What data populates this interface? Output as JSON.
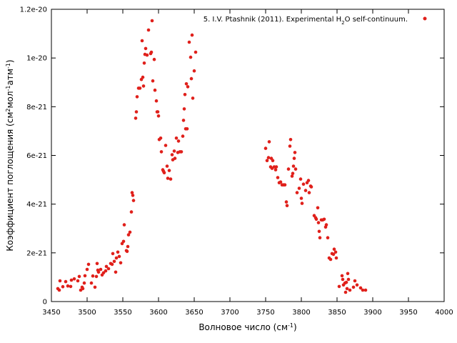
{
  "chart_data": {
    "type": "scatter",
    "xlabel": {
      "pre": "Волновое число (см",
      "sup": "-1",
      "post": ")"
    },
    "ylabel": {
      "parts": [
        {
          "t": "Коэффициент поглощения (см",
          "sup": false
        },
        {
          "t": "2",
          "sup": true
        },
        {
          "t": "мол",
          "sup": false
        },
        {
          "t": "-1",
          "sup": true
        },
        {
          "t": "атм",
          "sup": false
        },
        {
          "t": "-1",
          "sup": true
        },
        {
          "t": ")",
          "sup": false
        }
      ]
    },
    "xlim": [
      3450,
      4000
    ],
    "ylim": [
      0,
      1.2e-20
    ],
    "x_ticks": [
      3450,
      3500,
      3550,
      3600,
      3650,
      3700,
      3750,
      3800,
      3850,
      3900,
      3950,
      4000
    ],
    "y_ticks": [
      0,
      2e-21,
      4e-21,
      6e-21,
      8e-21,
      1e-20,
      1.2e-20
    ],
    "y_tick_labels": [
      "0",
      "2e-21",
      "4e-21",
      "6e-21",
      "8e-21",
      "1e-20",
      "1.2e-20"
    ],
    "grid": false,
    "legend_position": "top-right",
    "series": [
      {
        "name": "5. I.V. Ptashnik (2011). Experimental H2O self-continuum.",
        "name_parts": [
          {
            "t": "5. I.V. Ptashnik (2011). Experimental H",
            "sub": false
          },
          {
            "t": "2",
            "sub": true
          },
          {
            "t": "O self-continuum.",
            "sub": false
          }
        ],
        "color": "#e0201b",
        "points": [
          [
            3459,
            5.3e-22
          ],
          [
            3461,
            4.7e-22
          ],
          [
            3462,
            8.5e-22
          ],
          [
            3466,
            6.1e-22
          ],
          [
            3470,
            8.2e-22
          ],
          [
            3473,
            6.4e-22
          ],
          [
            3477,
            6.2e-22
          ],
          [
            3478,
            8.8e-22
          ],
          [
            3482,
            9.3e-22
          ],
          [
            3487,
            8.5e-22
          ],
          [
            3489,
            1.03e-21
          ],
          [
            3491,
            4.7e-22
          ],
          [
            3493,
            5.9e-22
          ],
          [
            3494,
            5.3e-22
          ],
          [
            3496,
            7.6e-22
          ],
          [
            3497,
            1.06e-21
          ],
          [
            3500,
            1.32e-21
          ],
          [
            3502,
            1.53e-21
          ],
          [
            3506,
            7.6e-22
          ],
          [
            3508,
            1.05e-21
          ],
          [
            3511,
            5.9e-22
          ],
          [
            3513,
            1.03e-21
          ],
          [
            3514,
            1.56e-21
          ],
          [
            3515,
            1.29e-21
          ],
          [
            3516,
            1.21e-21
          ],
          [
            3519,
            1.32e-21
          ],
          [
            3521,
            1.09e-21
          ],
          [
            3523,
            1.18e-21
          ],
          [
            3526,
            1.26e-21
          ],
          [
            3527,
            1.44e-21
          ],
          [
            3530,
            1.35e-21
          ],
          [
            3533,
            1.56e-21
          ],
          [
            3535,
            1.53e-21
          ],
          [
            3536,
            1.97e-21
          ],
          [
            3538,
            1.65e-21
          ],
          [
            3540,
            1.21e-21
          ],
          [
            3541,
            1.79e-21
          ],
          [
            3543,
            2.03e-21
          ],
          [
            3545,
            1.85e-21
          ],
          [
            3547,
            1.59e-21
          ],
          [
            3549,
            2.38e-21
          ],
          [
            3551,
            2.47e-21
          ],
          [
            3552,
            3.15e-21
          ],
          [
            3555,
            2.09e-21
          ],
          [
            3556,
            2.06e-21
          ],
          [
            3557,
            2.26e-21
          ],
          [
            3558,
            2.74e-21
          ],
          [
            3560,
            2.85e-21
          ],
          [
            3562,
            3.68e-21
          ],
          [
            3563,
            4.47e-21
          ],
          [
            3564,
            4.36e-21
          ],
          [
            3565,
            4.15e-21
          ],
          [
            3568,
            7.53e-21
          ],
          [
            3569,
            7.79e-21
          ],
          [
            3570,
            8.41e-21
          ],
          [
            3572,
            8.76e-21
          ],
          [
            3574,
            8.76e-21
          ],
          [
            3576,
            9.12e-21
          ],
          [
            3577,
            1.071e-20
          ],
          [
            3578,
            9.21e-21
          ],
          [
            3579,
            8.85e-21
          ],
          [
            3580,
            9.79e-21
          ],
          [
            3581,
            1.015e-20
          ],
          [
            3582,
            1.039e-20
          ],
          [
            3584,
            1.012e-20
          ],
          [
            3586,
            1.115e-20
          ],
          [
            3589,
            1.018e-20
          ],
          [
            3590,
            1.024e-20
          ],
          [
            3591,
            1.153e-20
          ],
          [
            3592,
            9.06e-21
          ],
          [
            3594,
            9.94e-21
          ],
          [
            3595,
            8.68e-21
          ],
          [
            3597,
            8.24e-21
          ],
          [
            3598,
            7.79e-21
          ],
          [
            3599,
            7.79e-21
          ],
          [
            3600,
            7.62e-21
          ],
          [
            3601,
            6.65e-21
          ],
          [
            3603,
            6.71e-21
          ],
          [
            3604,
            6.15e-21
          ],
          [
            3606,
            5.41e-21
          ],
          [
            3607,
            5.35e-21
          ],
          [
            3608,
            5.29e-21
          ],
          [
            3610,
            6.41e-21
          ],
          [
            3612,
            5.56e-21
          ],
          [
            3613,
            5.06e-21
          ],
          [
            3615,
            5.38e-21
          ],
          [
            3617,
            5.03e-21
          ],
          [
            3619,
            6.03e-21
          ],
          [
            3620,
            5.82e-21
          ],
          [
            3622,
            6.18e-21
          ],
          [
            3623,
            5.88e-21
          ],
          [
            3625,
            6.71e-21
          ],
          [
            3627,
            6.12e-21
          ],
          [
            3628,
            6.59e-21
          ],
          [
            3630,
            6.15e-21
          ],
          [
            3632,
            6.15e-21
          ],
          [
            3634,
            6.79e-21
          ],
          [
            3635,
            7.44e-21
          ],
          [
            3636,
            7.91e-21
          ],
          [
            3637,
            8.5e-21
          ],
          [
            3638,
            7.09e-21
          ],
          [
            3639,
            8.94e-21
          ],
          [
            3640,
            7.09e-21
          ],
          [
            3641,
            8.82e-21
          ],
          [
            3643,
            1.065e-20
          ],
          [
            3645,
            1.003e-20
          ],
          [
            3646,
            9.15e-21
          ],
          [
            3647,
            1.094e-20
          ],
          [
            3648,
            8.35e-21
          ],
          [
            3650,
            9.47e-21
          ],
          [
            3652,
            1.024e-20
          ],
          [
            3750,
            6.29e-21
          ],
          [
            3752,
            5.79e-21
          ],
          [
            3754,
            5.91e-21
          ],
          [
            3755,
            6.56e-21
          ],
          [
            3757,
            5.53e-21
          ],
          [
            3758,
            5.88e-21
          ],
          [
            3759,
            5.47e-21
          ],
          [
            3760,
            5.79e-21
          ],
          [
            3762,
            5.53e-21
          ],
          [
            3764,
            5.41e-21
          ],
          [
            3765,
            5.53e-21
          ],
          [
            3767,
            5.09e-21
          ],
          [
            3769,
            4.88e-21
          ],
          [
            3771,
            4.91e-21
          ],
          [
            3773,
            4.79e-21
          ],
          [
            3775,
            4.79e-21
          ],
          [
            3777,
            4.79e-21
          ],
          [
            3779,
            4.09e-21
          ],
          [
            3780,
            3.94e-21
          ],
          [
            3782,
            5.44e-21
          ],
          [
            3784,
            6.38e-21
          ],
          [
            3785,
            6.65e-21
          ],
          [
            3787,
            5.15e-21
          ],
          [
            3788,
            5.26e-21
          ],
          [
            3789,
            5.56e-21
          ],
          [
            3790,
            5.88e-21
          ],
          [
            3791,
            6.12e-21
          ],
          [
            3792,
            5.44e-21
          ],
          [
            3794,
            4.47e-21
          ],
          [
            3797,
            4.65e-21
          ],
          [
            3799,
            5.03e-21
          ],
          [
            3800,
            4.24e-21
          ],
          [
            3801,
            4.03e-21
          ],
          [
            3803,
            4.82e-21
          ],
          [
            3806,
            4.56e-21
          ],
          [
            3808,
            4.88e-21
          ],
          [
            3810,
            4.97e-21
          ],
          [
            3811,
            4.47e-21
          ],
          [
            3813,
            4.74e-21
          ],
          [
            3814,
            4.71e-21
          ],
          [
            3818,
            3.53e-21
          ],
          [
            3820,
            3.44e-21
          ],
          [
            3821,
            3.38e-21
          ],
          [
            3823,
            3.85e-21
          ],
          [
            3824,
            3.24e-21
          ],
          [
            3825,
            2.88e-21
          ],
          [
            3826,
            2.62e-21
          ],
          [
            3828,
            3.35e-21
          ],
          [
            3830,
            3.35e-21
          ],
          [
            3832,
            3.38e-21
          ],
          [
            3834,
            3.06e-21
          ],
          [
            3835,
            3.15e-21
          ],
          [
            3837,
            2.62e-21
          ],
          [
            3839,
            1.79e-21
          ],
          [
            3841,
            1.73e-21
          ],
          [
            3843,
            1.97e-21
          ],
          [
            3845,
            1.94e-21
          ],
          [
            3846,
            2.15e-21
          ],
          [
            3848,
            2.03e-21
          ],
          [
            3849,
            1.79e-21
          ],
          [
            3853,
            6.2e-22
          ],
          [
            3857,
            1.06e-21
          ],
          [
            3858,
            9.1e-22
          ],
          [
            3859,
            6.8e-22
          ],
          [
            3861,
            7.6e-22
          ],
          [
            3862,
            3.8e-22
          ],
          [
            3863,
            7.9e-22
          ],
          [
            3864,
            5.3e-22
          ],
          [
            3865,
            1.15e-21
          ],
          [
            3866,
            9.1e-22
          ],
          [
            3868,
            4.7e-22
          ],
          [
            3873,
            5.9e-22
          ],
          [
            3875,
            8.5e-22
          ],
          [
            3878,
            6.8e-22
          ],
          [
            3883,
            5.6e-22
          ],
          [
            3886,
            4.7e-22
          ],
          [
            3890,
            4.7e-22
          ]
        ]
      }
    ]
  }
}
